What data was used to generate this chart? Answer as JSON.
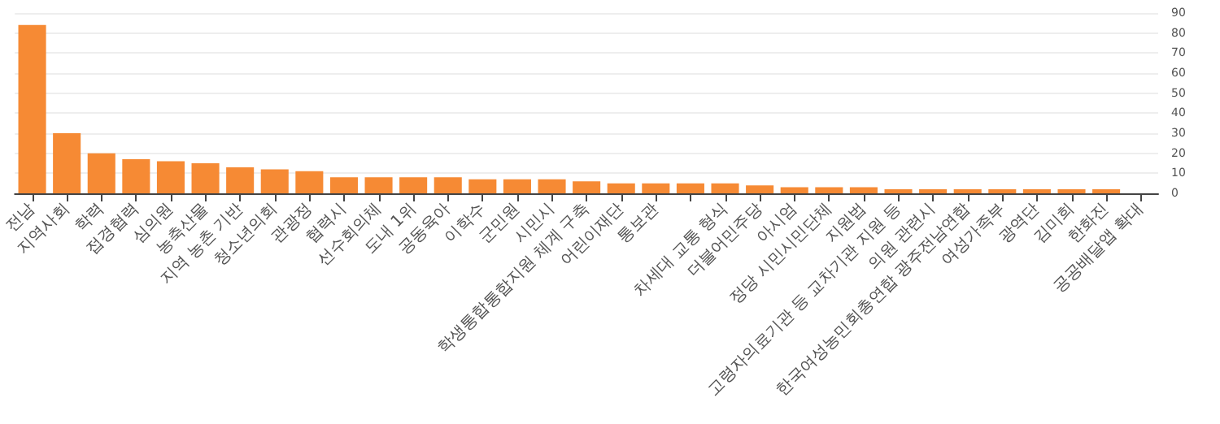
{
  "chart_data": {
    "type": "bar",
    "categories": [
      "전남",
      "지역사회",
      "학력",
      "접경협력",
      "심의원",
      "농축산물",
      "지역 농촌 기반",
      "청소년의회",
      "관광정",
      "협력시",
      "선수회의체",
      "도내 1위",
      "공동육아",
      "이학수",
      "군민원",
      "시민시",
      "학생통합통합지원 체계 구축",
      "어린이재단",
      "통보관",
      null,
      "차세대 교통 형식",
      "더불어민주당",
      "아시엄",
      "정당 시민시민단체",
      "지원법",
      "고령자의료기관 등 교차기관 지원 등",
      "의원 관련시",
      "한국여성농민회총연합 광주전남연합",
      "여성가족부",
      "광역단",
      "김미희",
      "한화진",
      "공공배달앱 확대"
    ],
    "values": [
      84,
      30,
      20,
      17,
      16,
      15,
      13,
      12,
      11,
      8,
      8,
      8,
      8,
      7,
      7,
      7,
      6,
      5,
      5,
      5,
      5,
      4,
      3,
      3,
      3,
      2,
      2,
      2,
      2,
      2,
      2,
      2,
      0
    ],
    "color": "#f68a34",
    "ylim": [
      0,
      90
    ],
    "yticks": [
      0,
      10,
      20,
      30,
      40,
      50,
      60,
      70,
      80,
      90
    ],
    "grid": "y"
  }
}
